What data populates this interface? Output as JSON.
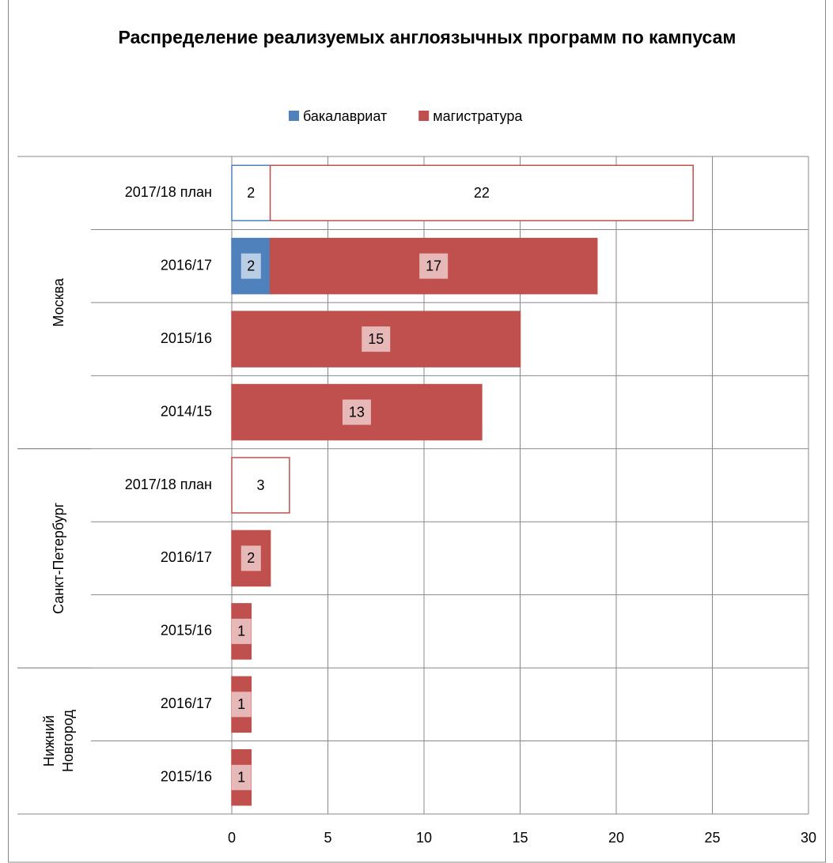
{
  "chart_data": {
    "type": "stacked-bar-horizontal",
    "title": "Распределение  реализуемых англоязычных программ по кампусам",
    "groups": [
      {
        "name": [
          "Москва"
        ],
        "categories": [
          "2017/18 план",
          "2016/17",
          "2015/16",
          "2014/15"
        ]
      },
      {
        "name": [
          "Санкт-Петербург"
        ],
        "categories": [
          "2017/18 план",
          "2016/17",
          "2015/16"
        ]
      },
      {
        "name": [
          "Нижний",
          "Новгород"
        ],
        "categories": [
          "2016/17",
          "2015/16"
        ]
      }
    ],
    "series": [
      {
        "name": "бакалавриат",
        "color": "#4f81bd",
        "label_background": "#b9cde5",
        "values": [
          2,
          2,
          null,
          null,
          null,
          null,
          null,
          null,
          null
        ],
        "fills": [
          "#ffffff",
          "#4f81bd",
          null,
          null,
          null,
          null,
          null,
          null,
          null
        ]
      },
      {
        "name": "магистратура",
        "color": "#c0504d",
        "label_background": "#e6b9b8",
        "values": [
          22,
          17,
          15,
          13,
          3,
          2,
          1,
          1,
          1
        ],
        "fills": [
          "#ffffff",
          "#c0504d",
          "#c0504d",
          "#c0504d",
          "#ffffff",
          "#c0504d",
          "#c0504d",
          "#c0504d",
          "#c0504d"
        ]
      }
    ],
    "xlim": [
      0,
      30
    ],
    "xticks": [
      0,
      5,
      10,
      15,
      20,
      25,
      30
    ],
    "grid": true,
    "legend": "top"
  }
}
